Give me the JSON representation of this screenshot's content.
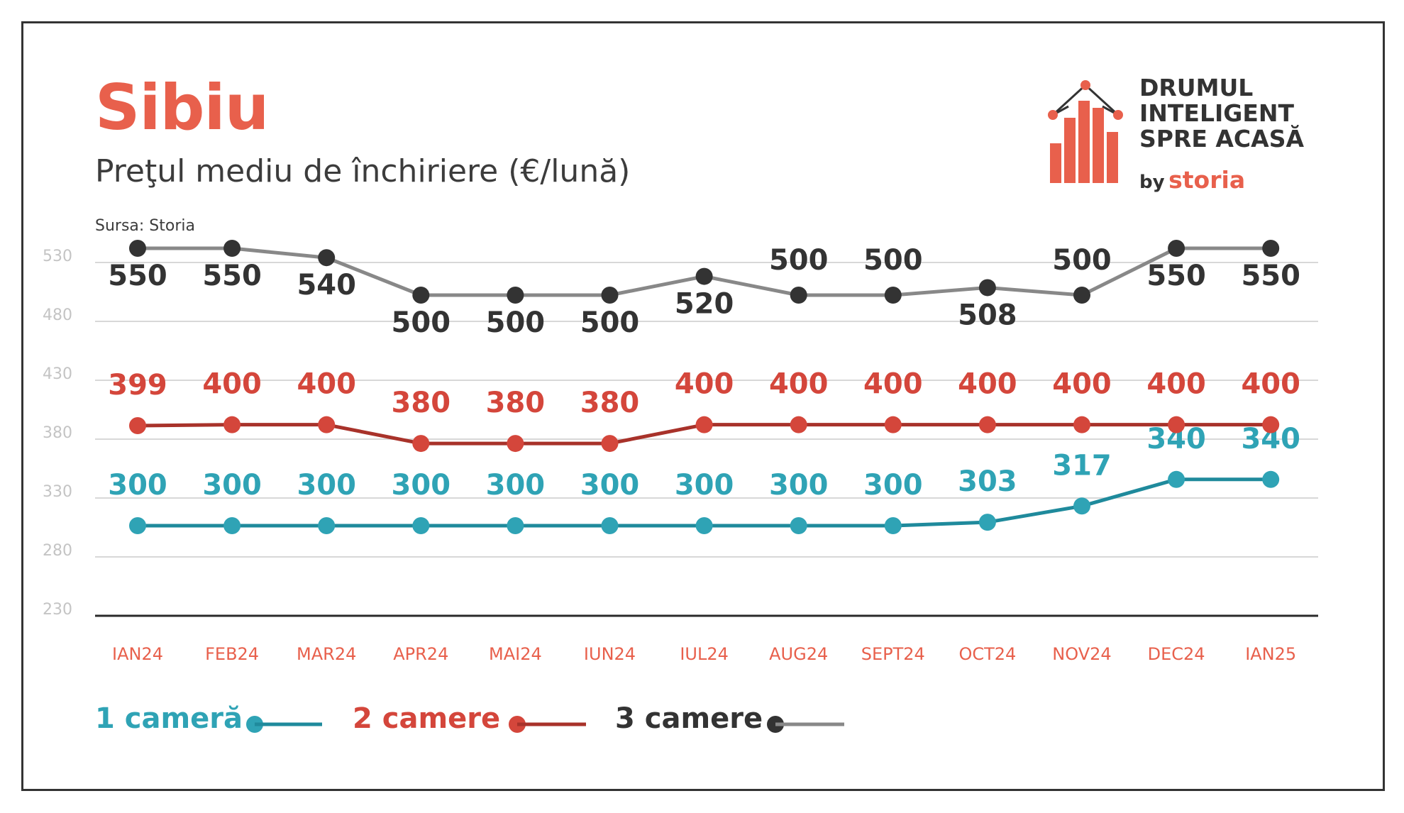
{
  "header": {
    "title": "Sibiu",
    "subtitle": "Preţul mediu de închiriere (€/lună)",
    "source": "Sursa: Storia"
  },
  "logo": {
    "lines": [
      "DRUMUL",
      "INTELIGENT",
      "SPRE ACASĂ"
    ],
    "by": "by",
    "brand": "storia"
  },
  "colors": {
    "title": "#e8604c",
    "axis_labels": "#e8604c",
    "one_room": "#2fa3b5",
    "one_room_line": "#1f8a9c",
    "two_rooms": "#d4463b",
    "two_rooms_line": "#a8322a",
    "three_rooms": "#333333",
    "three_rooms_line": "#888888",
    "grid": "#d8d8d8"
  },
  "chart_data": {
    "type": "line",
    "categories": [
      "IAN24",
      "FEB24",
      "MAR24",
      "APR24",
      "MAI24",
      "IUN24",
      "IUL24",
      "AUG24",
      "SEPT24",
      "OCT24",
      "NOV24",
      "DEC24",
      "IAN25"
    ],
    "y_ticks": [
      "530",
      "480",
      "430",
      "380",
      "330",
      "280",
      "230"
    ],
    "grid": true,
    "legend_position": "bottom-left",
    "series": [
      {
        "name": "1 cameră",
        "key": "one_room",
        "values": [
          300,
          300,
          300,
          300,
          300,
          300,
          300,
          300,
          300,
          303,
          317,
          340,
          340
        ]
      },
      {
        "name": "2 camere",
        "key": "two_rooms",
        "values": [
          399,
          400,
          400,
          380,
          380,
          380,
          400,
          400,
          400,
          400,
          400,
          400,
          400
        ]
      },
      {
        "name": "3 camere",
        "key": "three_rooms",
        "values": [
          550,
          550,
          540,
          500,
          500,
          500,
          520,
          500,
          500,
          508,
          500,
          550,
          550
        ]
      }
    ]
  }
}
